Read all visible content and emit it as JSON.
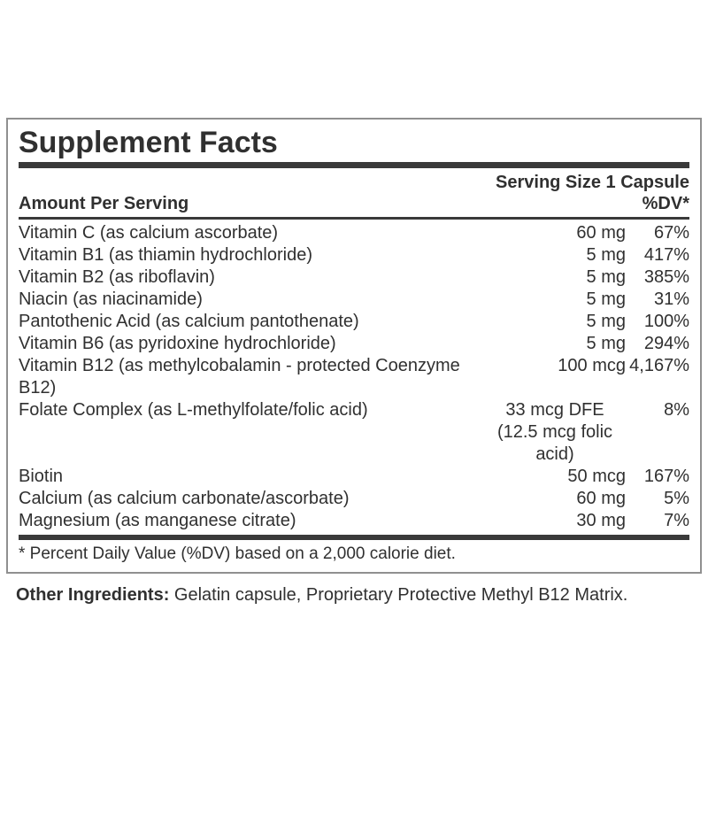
{
  "label": {
    "title": "Supplement Facts",
    "serving_size": "Serving Size 1 Capsule",
    "columns": {
      "amount_header": "Amount Per Serving",
      "dv_header": "%DV*"
    },
    "rows": [
      {
        "name": "Vitamin C (as calcium ascorbate)",
        "amount": "60 mg",
        "dv": "67%"
      },
      {
        "name": "Vitamin B1 (as thiamin hydrochloride)",
        "amount": "5 mg",
        "dv": "417%"
      },
      {
        "name": "Vitamin B2 (as riboflavin)",
        "amount": "5 mg",
        "dv": "385%"
      },
      {
        "name": "Niacin (as niacinamide)",
        "amount": "5 mg",
        "dv": "31%"
      },
      {
        "name": "Pantothenic Acid (as calcium pantothenate)",
        "amount": "5 mg",
        "dv": "100%"
      },
      {
        "name": "Vitamin B6 (as pyridoxine hydrochloride)",
        "amount": "5 mg",
        "dv": "294%"
      },
      {
        "name": "Vitamin B12 (as methylcobalamin - protected Coenzyme B12)",
        "amount": "100 mcg",
        "dv": "4,167%"
      },
      {
        "name": "Folate Complex (as L-methylfolate/folic acid)",
        "amount": "33 mcg DFE (12.5 mcg folic acid)",
        "dv": "8%",
        "amount_align": "center"
      },
      {
        "name": "Biotin",
        "amount": "50 mcg",
        "dv": "167%"
      },
      {
        "name": "Calcium (as calcium carbonate/ascorbate)",
        "amount": "60 mg",
        "dv": "5%"
      },
      {
        "name": "Magnesium (as manganese citrate)",
        "amount": "30 mg",
        "dv": "7%"
      }
    ],
    "footnote": "* Percent Daily Value (%DV) based on a 2,000 calorie diet.",
    "other_ingredients_label": "Other Ingredients:",
    "other_ingredients_text": " Gelatin capsule, Proprietary Protective Methyl B12 Matrix."
  },
  "colors": {
    "text": "#303030",
    "rule": "#3a3a3a",
    "border": "#909090"
  }
}
